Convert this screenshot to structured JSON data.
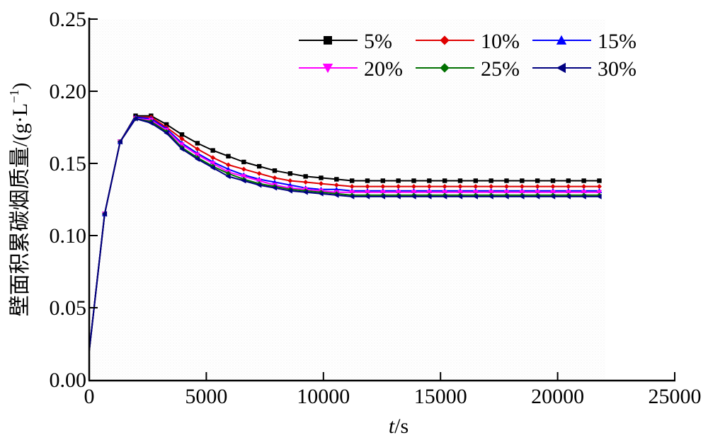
{
  "chart_data": {
    "type": "line",
    "title": "",
    "xlabel_italic": "t",
    "xlabel_rest": "/s",
    "ylabel": "壁面积累碳烟质量/(g·L",
    "ylabel_sup": "−1",
    "ylabel_close": ")",
    "xlim": [
      0,
      25000
    ],
    "ylim": [
      0.0,
      0.25
    ],
    "xticks": [
      0,
      5000,
      10000,
      15000,
      20000,
      25000
    ],
    "xtick_labels": [
      "0",
      "5000",
      "10000",
      "15000",
      "20000",
      "25000"
    ],
    "yticks": [
      0.0,
      0.05,
      0.1,
      0.15,
      0.2,
      0.25
    ],
    "ytick_labels": [
      "0.00",
      "0.05",
      "0.10",
      "0.15",
      "0.20",
      "0.25"
    ],
    "grid": false,
    "legend_position": "top-right",
    "x": [
      0,
      660,
      1320,
      1980,
      2640,
      3300,
      3960,
      4620,
      5280,
      5940,
      6600,
      7260,
      7920,
      8580,
      9240,
      9900,
      10560,
      11220,
      11880,
      12540,
      13200,
      13860,
      14520,
      15180,
      15840,
      16500,
      17160,
      17820,
      18480,
      19140,
      19800,
      20460,
      21120,
      21780
    ],
    "series": [
      {
        "name": "5%",
        "color": "#000000",
        "marker": "square",
        "values": [
          0.02,
          0.115,
          0.165,
          0.183,
          0.183,
          0.177,
          0.17,
          0.164,
          0.159,
          0.155,
          0.151,
          0.148,
          0.145,
          0.143,
          0.141,
          0.14,
          0.139,
          0.138,
          0.138,
          0.138,
          0.138,
          0.138,
          0.138,
          0.138,
          0.138,
          0.138,
          0.138,
          0.138,
          0.138,
          0.138,
          0.138,
          0.138,
          0.138,
          0.138
        ]
      },
      {
        "name": "10%",
        "color": "#e00000",
        "marker": "diamond",
        "values": [
          0.02,
          0.115,
          0.165,
          0.182,
          0.182,
          0.175,
          0.167,
          0.16,
          0.154,
          0.149,
          0.146,
          0.143,
          0.14,
          0.138,
          0.137,
          0.136,
          0.135,
          0.134,
          0.134,
          0.134,
          0.134,
          0.134,
          0.134,
          0.134,
          0.134,
          0.134,
          0.134,
          0.134,
          0.134,
          0.134,
          0.134,
          0.134,
          0.134,
          0.134
        ]
      },
      {
        "name": "15%",
        "color": "#0000ff",
        "marker": "triangle-up",
        "values": [
          0.02,
          0.115,
          0.165,
          0.182,
          0.181,
          0.174,
          0.164,
          0.157,
          0.151,
          0.146,
          0.142,
          0.139,
          0.137,
          0.135,
          0.133,
          0.132,
          0.132,
          0.131,
          0.131,
          0.131,
          0.131,
          0.131,
          0.131,
          0.131,
          0.131,
          0.131,
          0.131,
          0.131,
          0.131,
          0.131,
          0.131,
          0.131,
          0.131,
          0.131
        ]
      },
      {
        "name": "20%",
        "color": "#ff00ff",
        "marker": "triangle-down",
        "values": [
          0.02,
          0.115,
          0.165,
          0.181,
          0.18,
          0.173,
          0.163,
          0.156,
          0.15,
          0.144,
          0.141,
          0.138,
          0.135,
          0.133,
          0.132,
          0.131,
          0.13,
          0.13,
          0.13,
          0.13,
          0.13,
          0.13,
          0.13,
          0.13,
          0.13,
          0.13,
          0.13,
          0.13,
          0.13,
          0.13,
          0.13,
          0.13,
          0.13,
          0.13
        ]
      },
      {
        "name": "25%",
        "color": "#007000",
        "marker": "diamond",
        "values": [
          0.02,
          0.115,
          0.165,
          0.181,
          0.179,
          0.172,
          0.161,
          0.154,
          0.148,
          0.143,
          0.139,
          0.136,
          0.134,
          0.132,
          0.131,
          0.13,
          0.129,
          0.128,
          0.128,
          0.128,
          0.128,
          0.128,
          0.128,
          0.128,
          0.128,
          0.128,
          0.128,
          0.128,
          0.128,
          0.128,
          0.128,
          0.128,
          0.128,
          0.128
        ]
      },
      {
        "name": "30%",
        "color": "#000080",
        "marker": "triangle-left",
        "values": [
          0.02,
          0.115,
          0.165,
          0.181,
          0.178,
          0.171,
          0.16,
          0.153,
          0.147,
          0.141,
          0.138,
          0.135,
          0.133,
          0.131,
          0.13,
          0.129,
          0.128,
          0.127,
          0.127,
          0.127,
          0.127,
          0.127,
          0.127,
          0.127,
          0.127,
          0.127,
          0.127,
          0.127,
          0.127,
          0.127,
          0.127,
          0.127,
          0.127,
          0.127
        ]
      }
    ]
  }
}
